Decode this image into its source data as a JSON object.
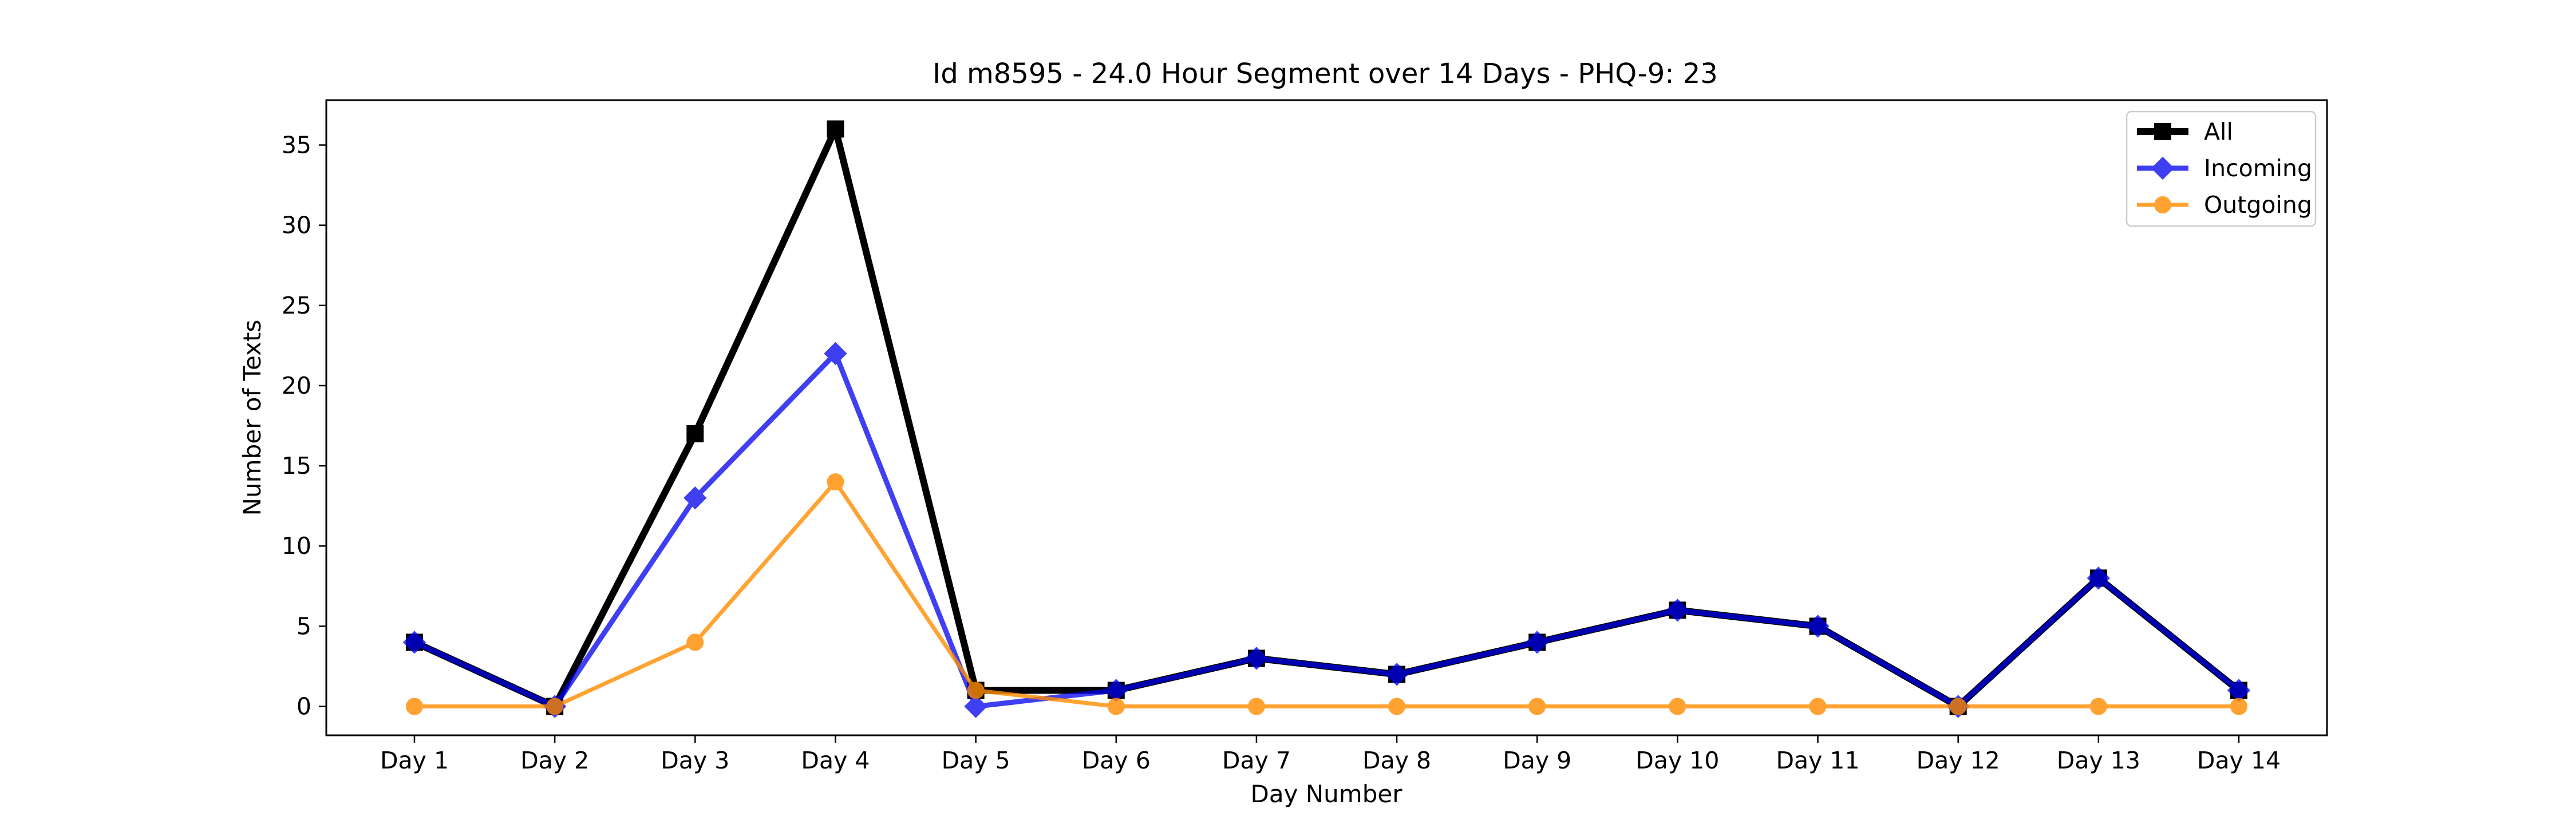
{
  "chart_data": {
    "type": "line",
    "title": "Id m8595 - 24.0 Hour Segment over 14 Days - PHQ-9: 23",
    "xlabel": "Day Number",
    "ylabel": "Number of Texts",
    "categories": [
      "Day 1",
      "Day 2",
      "Day 3",
      "Day 4",
      "Day 5",
      "Day 6",
      "Day 7",
      "Day 8",
      "Day 9",
      "Day 10",
      "Day 11",
      "Day 12",
      "Day 13",
      "Day 14"
    ],
    "ylim": [
      -1.8,
      37.8
    ],
    "yticks": [
      0,
      5,
      10,
      15,
      20,
      25,
      30,
      35
    ],
    "grid": false,
    "legend_position": "top-right",
    "series": [
      {
        "name": "All",
        "color": "#000000",
        "marker": "square",
        "values": [
          4,
          0,
          17,
          36,
          1,
          1,
          3,
          2,
          4,
          6,
          5,
          0,
          8,
          1
        ]
      },
      {
        "name": "Incoming",
        "color": "#0000ee",
        "marker": "diamond",
        "values": [
          4,
          0,
          13,
          22,
          0,
          1,
          3,
          2,
          4,
          6,
          5,
          0,
          8,
          1
        ]
      },
      {
        "name": "Outgoing",
        "color": "#ff8c00",
        "marker": "circle",
        "values": [
          0,
          0,
          4,
          14,
          1,
          0,
          0,
          0,
          0,
          0,
          0,
          0,
          0,
          0
        ]
      }
    ]
  }
}
